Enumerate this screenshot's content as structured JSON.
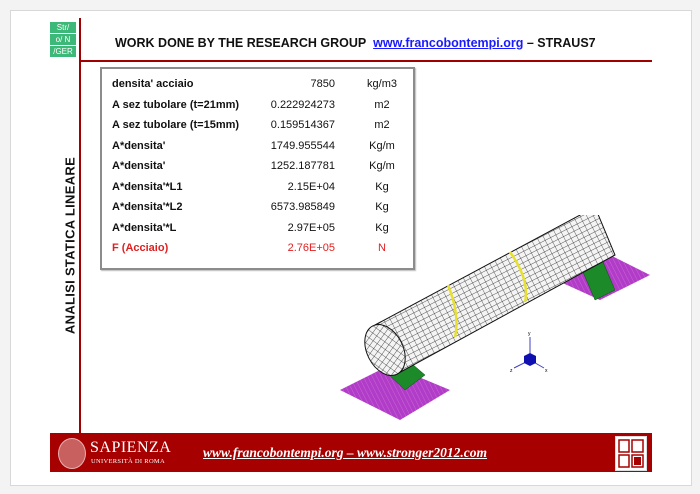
{
  "logo": {
    "lines": [
      "Str/",
      "o/ N",
      "/GER"
    ]
  },
  "header": {
    "title_prefix": "WORK DONE BY THE RESEARCH GROUP",
    "link": "www.francobontempi.org",
    "title_suffix": "– STRAUS7"
  },
  "side_title": "ANALISI STATICA LINEARE",
  "table": {
    "rows": [
      {
        "label": "densita' acciaio",
        "value": "7850",
        "unit": "kg/m3"
      },
      {
        "label": "A sez tubolare (t=21mm)",
        "value": "0.222924273",
        "unit": "m2"
      },
      {
        "label": "A sez tubolare (t=15mm)",
        "value": "0.159514367",
        "unit": "m2"
      },
      {
        "label": "A*densita'",
        "value": "1749.955544",
        "unit": "Kg/m"
      },
      {
        "label": "A*densita'",
        "value": "1252.187781",
        "unit": "Kg/m"
      },
      {
        "label": "A*densita'*L1",
        "value": "2.15E+04",
        "unit": "Kg"
      },
      {
        "label": "A*densita'*L2",
        "value": "6573.985849",
        "unit": "Kg"
      },
      {
        "label": "A*densita'*L",
        "value": "2.97E+05",
        "unit": "Kg"
      },
      {
        "label": "F (Acciaio)",
        "value": "2.76E+05",
        "unit": "N"
      }
    ]
  },
  "axes": {
    "x": "x",
    "y": "y",
    "z": "z"
  },
  "footer": {
    "university": "SAPIENZA",
    "university_sub": "UNIVERSITÀ DI ROMA",
    "links": "www.francobontempi.org – www.stronger2012.com"
  },
  "colors": {
    "accent": "#a60000",
    "logo": "#3cb878",
    "link": "#1a1aff",
    "highlight": "#e02020"
  }
}
